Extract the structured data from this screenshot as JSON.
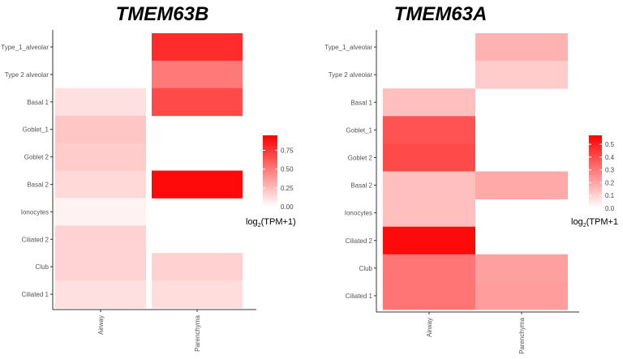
{
  "chart_data": [
    {
      "type": "heatmap",
      "title": "TMEM63B",
      "x_categories": [
        "Airway",
        "Parenchyma"
      ],
      "y_categories": [
        "Type_1_alveolar",
        "Type 2 alveolar",
        "Basal 1",
        "Goblet_1",
        "Goblet 2",
        "Basal 2",
        "Ionocytes",
        "Ciliated 2",
        "Club",
        "Ciliated 1"
      ],
      "values": [
        [
          null,
          0.82
        ],
        [
          null,
          0.52
        ],
        [
          0.12,
          0.7
        ],
        [
          0.22,
          null
        ],
        [
          0.2,
          null
        ],
        [
          0.15,
          0.95
        ],
        [
          0.05,
          null
        ],
        [
          0.17,
          null
        ],
        [
          0.17,
          0.18
        ],
        [
          0.12,
          0.13
        ]
      ],
      "colorbar": {
        "ticks": [
          "0.00",
          "0.25",
          "0.50",
          "0.75"
        ],
        "tick_values": [
          0,
          0.25,
          0.5,
          0.75
        ],
        "min": 0,
        "max": 0.95,
        "label_main": "log",
        "label_sub": "2",
        "label_rest": "(TPM+1)"
      },
      "low_color": "#ffffff",
      "high_color": "#ff0000"
    },
    {
      "type": "heatmap",
      "title": "TMEM63A",
      "x_categories": [
        "Airway",
        "Parenchyma"
      ],
      "y_categories": [
        "Type_1_alveolar",
        "Type 2 alveolar",
        "Basal 1",
        "Goblet_1",
        "Goblet 2",
        "Basal 2",
        "Ionocytes",
        "Ciliated 2",
        "Club",
        "Ciliated 1"
      ],
      "values": [
        [
          null,
          0.18
        ],
        [
          null,
          0.12
        ],
        [
          0.15,
          null
        ],
        [
          0.4,
          null
        ],
        [
          0.42,
          null
        ],
        [
          0.15,
          0.2
        ],
        [
          0.15,
          null
        ],
        [
          0.57,
          null
        ],
        [
          0.32,
          0.22
        ],
        [
          0.32,
          0.23
        ]
      ],
      "colorbar": {
        "ticks": [
          "0.0",
          "0.1",
          "0.2",
          "0.3",
          "0.4",
          "0.5"
        ],
        "tick_values": [
          0,
          0.1,
          0.2,
          0.3,
          0.4,
          0.5
        ],
        "min": 0,
        "max": 0.57,
        "label_main": "log",
        "label_sub": "2",
        "label_rest": "(TPM+1"
      },
      "low_color": "#ffffff",
      "high_color": "#ff0000"
    }
  ]
}
